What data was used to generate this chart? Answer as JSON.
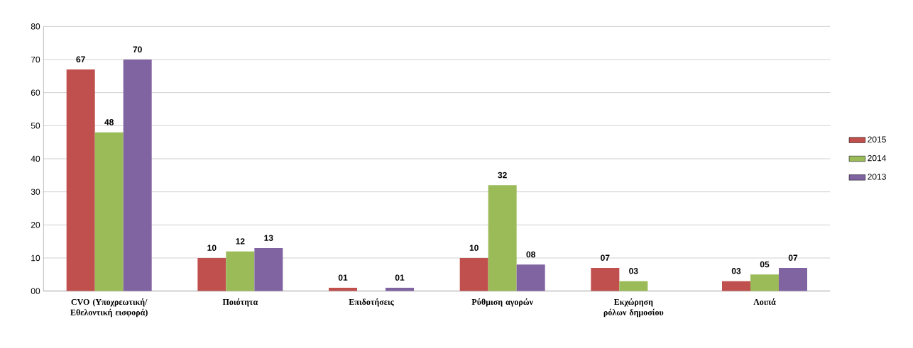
{
  "chart_data": {
    "type": "bar",
    "categories": [
      "CVO (Υποχρεωτική/ Εθελοντική εισφορά)",
      "Ποιότητα",
      "Επιδοτήσεις",
      "Ρύθμιση αγορών",
      "Εκχώρηση ρόλων δημοσίου",
      "Λοιπά"
    ],
    "series": [
      {
        "name": "2015",
        "color": "#c0504d",
        "values": [
          67,
          10,
          1,
          10,
          7,
          3
        ],
        "value_labels": [
          "67",
          "10",
          "01",
          "10",
          "07",
          "03"
        ]
      },
      {
        "name": "2014",
        "color": "#9bbb59",
        "values": [
          48,
          12,
          null,
          32,
          3,
          5
        ],
        "value_labels": [
          "48",
          "12",
          null,
          "32",
          "03",
          "05"
        ]
      },
      {
        "name": "2013",
        "color": "#8064a2",
        "values": [
          70,
          13,
          1,
          8,
          null,
          7
        ],
        "value_labels": [
          "70",
          "13",
          "01",
          "08",
          null,
          "07"
        ]
      }
    ],
    "ylim": [
      0,
      80
    ],
    "yticks": [
      {
        "value": 0,
        "label": "00"
      },
      10,
      20,
      30,
      40,
      50,
      60,
      70,
      80
    ],
    "grid": "y",
    "legend": "right"
  }
}
